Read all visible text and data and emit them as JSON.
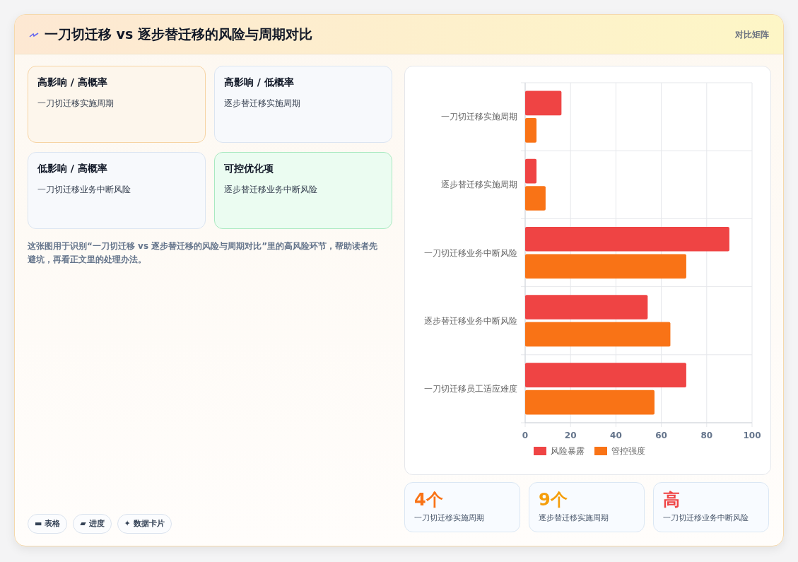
{
  "chart_data": [
    {
      "type": "other",
      "title": "一刀切迁移 vs 逐步替迁移的风险与周期对比",
      "subtitle": "对比矩阵",
      "annotations": [
        "高影响 / 高概率",
        "一刀切迁移实施周期",
        "高影响 / 低概率",
        "逐步替迁移实施周期",
        "低影响 / 高概率",
        "一刀切迁移业务中断风险",
        "可控优化项",
        "逐步替迁移业务中断风险",
        "这张图用于识别“一刀切迁移 vs 逐步替迁移的风险与周期对比”里的高风险环节，帮助读者先避坑，再看正文里的处理办法。",
        "▬ 表格",
        "▰ 进度",
        "✦ 数据卡片"
      ]
    },
    {
      "type": "bar",
      "orientation": "horizontal",
      "categories": [
        "一刀切迁移实施周期",
        "逐步替迁移实施周期",
        "一刀切迁移业务中断风险",
        "逐步替迁移业务中断风险",
        "一刀切迁移员工适应难度"
      ],
      "series": [
        {
          "name": "风险暴露",
          "color": "#ef4444",
          "values": [
            16,
            5,
            90,
            54,
            71
          ]
        },
        {
          "name": "管控强度",
          "color": "#f97316",
          "values": [
            5,
            9,
            71,
            64,
            57
          ]
        }
      ],
      "xlim": [
        0,
        100
      ],
      "xticks": [
        0,
        20,
        40,
        60,
        80,
        100
      ],
      "grid": true,
      "legend": "bottom"
    },
    {
      "type": "other",
      "annotations": [
        "4个",
        "一刀切迁移实施周期",
        "9个",
        "逐步替迁移实施周期",
        "高",
        "一刀切迁移业务中断风险"
      ]
    }
  ]
}
